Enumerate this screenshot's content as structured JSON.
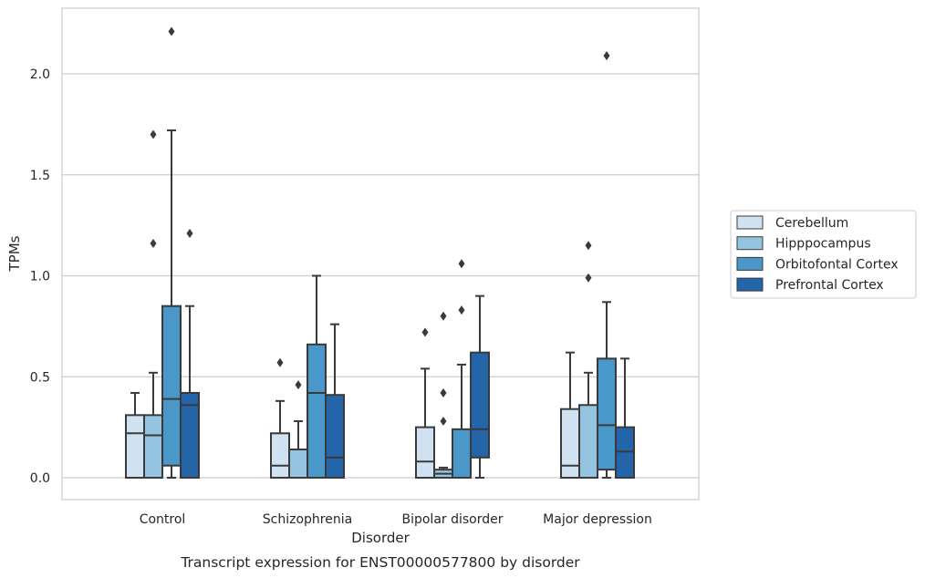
{
  "caption": "Transcript expression for ENST00000577800 by disorder",
  "chart_data": {
    "type": "box",
    "xlabel": "Disorder",
    "ylabel": "TPMs",
    "ylim": [
      -0.11,
      2.33
    ],
    "yticks": [
      0.0,
      0.5,
      1.0,
      1.5,
      2.0
    ],
    "ytick_labels": [
      "0.0",
      "0.5",
      "1.0",
      "1.5",
      "2.0"
    ],
    "grid": "horizontal",
    "legend_position": "right",
    "categories": [
      "Control",
      "Schizophrenia",
      "Bipolar disorder",
      "Major depression"
    ],
    "series": [
      {
        "name": "Cerebellum",
        "color": "#d0e1f2",
        "boxes": [
          {
            "q1": 0.0,
            "median": 0.22,
            "q3": 0.31,
            "whisker_low": 0.0,
            "whisker_high": 0.42,
            "outliers": []
          },
          {
            "q1": 0.0,
            "median": 0.06,
            "q3": 0.22,
            "whisker_low": 0.0,
            "whisker_high": 0.38,
            "outliers": [
              0.57
            ]
          },
          {
            "q1": 0.0,
            "median": 0.08,
            "q3": 0.25,
            "whisker_low": 0.0,
            "whisker_high": 0.54,
            "outliers": [
              0.72
            ]
          },
          {
            "q1": 0.0,
            "median": 0.06,
            "q3": 0.34,
            "whisker_low": 0.0,
            "whisker_high": 0.62,
            "outliers": []
          }
        ]
      },
      {
        "name": "Hipppocampus",
        "color": "#94c4df",
        "boxes": [
          {
            "q1": 0.0,
            "median": 0.21,
            "q3": 0.31,
            "whisker_low": 0.0,
            "whisker_high": 0.52,
            "outliers": [
              1.16,
              1.7
            ]
          },
          {
            "q1": 0.0,
            "median": 0.0,
            "q3": 0.14,
            "whisker_low": 0.0,
            "whisker_high": 0.28,
            "outliers": [
              0.46
            ]
          },
          {
            "q1": 0.0,
            "median": 0.02,
            "q3": 0.04,
            "whisker_low": 0.0,
            "whisker_high": 0.05,
            "outliers": [
              0.28,
              0.42,
              0.8
            ]
          },
          {
            "q1": 0.0,
            "median": 0.0,
            "q3": 0.36,
            "whisker_low": 0.0,
            "whisker_high": 0.52,
            "outliers": [
              0.99,
              1.15
            ]
          }
        ]
      },
      {
        "name": "Orbitofontal Cortex",
        "color": "#4a98c9",
        "boxes": [
          {
            "q1": 0.06,
            "median": 0.39,
            "q3": 0.85,
            "whisker_low": 0.0,
            "whisker_high": 1.72,
            "outliers": [
              2.21
            ]
          },
          {
            "q1": 0.0,
            "median": 0.42,
            "q3": 0.66,
            "whisker_low": 0.0,
            "whisker_high": 1.0,
            "outliers": []
          },
          {
            "q1": 0.0,
            "median": 0.0,
            "q3": 0.24,
            "whisker_low": 0.0,
            "whisker_high": 0.56,
            "outliers": [
              0.83,
              1.06
            ]
          },
          {
            "q1": 0.04,
            "median": 0.26,
            "q3": 0.59,
            "whisker_low": 0.0,
            "whisker_high": 0.87,
            "outliers": [
              2.09
            ]
          }
        ]
      },
      {
        "name": "Prefrontal Cortex",
        "color": "#2464a8",
        "boxes": [
          {
            "q1": 0.0,
            "median": 0.36,
            "q3": 0.42,
            "whisker_low": 0.0,
            "whisker_high": 0.85,
            "outliers": [
              1.21
            ]
          },
          {
            "q1": 0.0,
            "median": 0.1,
            "q3": 0.41,
            "whisker_low": 0.0,
            "whisker_high": 0.76,
            "outliers": []
          },
          {
            "q1": 0.1,
            "median": 0.24,
            "q3": 0.62,
            "whisker_low": 0.0,
            "whisker_high": 0.9,
            "outliers": []
          },
          {
            "q1": 0.0,
            "median": 0.13,
            "q3": 0.25,
            "whisker_low": 0.0,
            "whisker_high": 0.59,
            "outliers": []
          }
        ]
      }
    ]
  }
}
